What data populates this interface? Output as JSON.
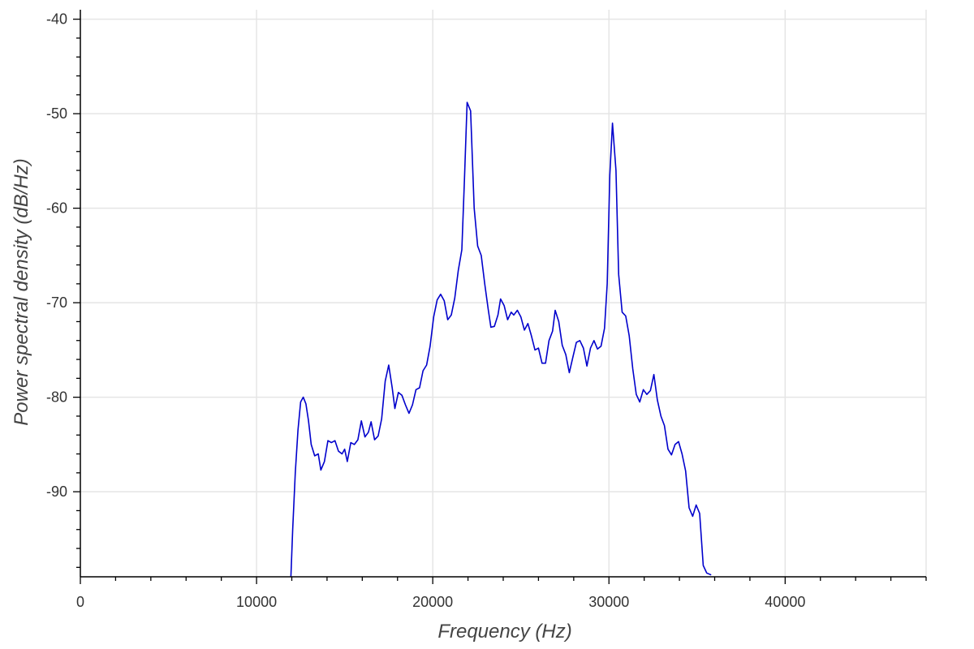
{
  "chart_data": {
    "type": "line",
    "title": "",
    "xlabel": "Frequency (Hz)",
    "ylabel": "Power spectral density (dB/Hz)",
    "xlim": [
      0,
      48000
    ],
    "ylim": [
      -99,
      -39
    ],
    "grid": true,
    "x_ticks": [
      0,
      10000,
      20000,
      30000,
      40000
    ],
    "x_tick_labels": [
      "0",
      "10000",
      "20000",
      "30000",
      "40000"
    ],
    "y_ticks": [
      -90,
      -80,
      -70,
      -60,
      -50,
      -40
    ],
    "y_tick_labels": [
      "-90",
      "-80",
      "-70",
      "-60",
      "-50",
      "-40"
    ],
    "series": [
      {
        "color": "#0000cc",
        "points": [
          [
            11950,
            -99
          ],
          [
            12050,
            -94
          ],
          [
            12200,
            -88
          ],
          [
            12350,
            -83.5
          ],
          [
            12500,
            -80.5
          ],
          [
            12650,
            -80
          ],
          [
            12800,
            -80.7
          ],
          [
            12950,
            -82.5
          ],
          [
            13100,
            -85
          ],
          [
            13300,
            -86.2
          ],
          [
            13500,
            -86
          ],
          [
            13650,
            -87.7
          ],
          [
            13850,
            -86.8
          ],
          [
            14050,
            -84.6
          ],
          [
            14250,
            -84.8
          ],
          [
            14450,
            -84.6
          ],
          [
            14650,
            -85.7
          ],
          [
            14850,
            -86
          ],
          [
            15000,
            -85.5
          ],
          [
            15150,
            -86.8
          ],
          [
            15350,
            -84.8
          ],
          [
            15550,
            -85
          ],
          [
            15750,
            -84.5
          ],
          [
            15950,
            -82.5
          ],
          [
            16150,
            -84.2
          ],
          [
            16350,
            -83.7
          ],
          [
            16500,
            -82.6
          ],
          [
            16700,
            -84.5
          ],
          [
            16900,
            -84.1
          ],
          [
            17100,
            -82.3
          ],
          [
            17300,
            -78.3
          ],
          [
            17500,
            -76.6
          ],
          [
            17700,
            -79
          ],
          [
            17850,
            -81.2
          ],
          [
            18050,
            -79.5
          ],
          [
            18250,
            -79.8
          ],
          [
            18450,
            -80.8
          ],
          [
            18650,
            -81.7
          ],
          [
            18850,
            -80.8
          ],
          [
            19050,
            -79.2
          ],
          [
            19250,
            -79
          ],
          [
            19450,
            -77.2
          ],
          [
            19650,
            -76.6
          ],
          [
            19850,
            -74.6
          ],
          [
            20050,
            -71.5
          ],
          [
            20250,
            -69.7
          ],
          [
            20450,
            -69.1
          ],
          [
            20650,
            -69.8
          ],
          [
            20850,
            -71.8
          ],
          [
            21050,
            -71.3
          ],
          [
            21250,
            -69.5
          ],
          [
            21450,
            -66.6
          ],
          [
            21650,
            -64.4
          ],
          [
            21800,
            -57
          ],
          [
            21950,
            -48.8
          ],
          [
            22150,
            -49.7
          ],
          [
            22350,
            -60
          ],
          [
            22550,
            -64
          ],
          [
            22750,
            -65
          ],
          [
            22950,
            -68
          ],
          [
            23150,
            -70.7
          ],
          [
            23300,
            -72.6
          ],
          [
            23500,
            -72.5
          ],
          [
            23700,
            -71.3
          ],
          [
            23850,
            -69.6
          ],
          [
            24050,
            -70.3
          ],
          [
            24250,
            -71.8
          ],
          [
            24450,
            -71
          ],
          [
            24600,
            -71.3
          ],
          [
            24800,
            -70.8
          ],
          [
            25000,
            -71.5
          ],
          [
            25200,
            -72.9
          ],
          [
            25400,
            -72.2
          ],
          [
            25600,
            -73.5
          ],
          [
            25800,
            -75
          ],
          [
            26000,
            -74.8
          ],
          [
            26200,
            -76.4
          ],
          [
            26400,
            -76.4
          ],
          [
            26600,
            -74
          ],
          [
            26800,
            -73
          ],
          [
            26950,
            -70.8
          ],
          [
            27150,
            -72
          ],
          [
            27350,
            -74.5
          ],
          [
            27550,
            -75.5
          ],
          [
            27750,
            -77.4
          ],
          [
            27950,
            -75.8
          ],
          [
            28150,
            -74.2
          ],
          [
            28350,
            -74
          ],
          [
            28550,
            -74.8
          ],
          [
            28750,
            -76.7
          ],
          [
            28950,
            -74.8
          ],
          [
            29150,
            -74
          ],
          [
            29350,
            -74.9
          ],
          [
            29550,
            -74.6
          ],
          [
            29750,
            -72.7
          ],
          [
            29900,
            -68
          ],
          [
            30050,
            -56.5
          ],
          [
            30200,
            -51
          ],
          [
            30400,
            -56
          ],
          [
            30550,
            -67
          ],
          [
            30750,
            -71
          ],
          [
            30950,
            -71.4
          ],
          [
            31150,
            -73.5
          ],
          [
            31350,
            -77
          ],
          [
            31550,
            -79.7
          ],
          [
            31750,
            -80.5
          ],
          [
            31950,
            -79.2
          ],
          [
            32150,
            -79.7
          ],
          [
            32350,
            -79.3
          ],
          [
            32550,
            -77.6
          ],
          [
            32750,
            -80.3
          ],
          [
            32950,
            -82
          ],
          [
            33150,
            -83
          ],
          [
            33350,
            -85.5
          ],
          [
            33550,
            -86.1
          ],
          [
            33750,
            -85
          ],
          [
            33950,
            -84.7
          ],
          [
            34150,
            -86
          ],
          [
            34350,
            -87.8
          ],
          [
            34550,
            -91.7
          ],
          [
            34750,
            -92.6
          ],
          [
            34950,
            -91.4
          ],
          [
            35150,
            -92.3
          ],
          [
            35350,
            -97.8
          ],
          [
            35550,
            -98.6
          ],
          [
            35800,
            -98.8
          ]
        ]
      }
    ]
  }
}
